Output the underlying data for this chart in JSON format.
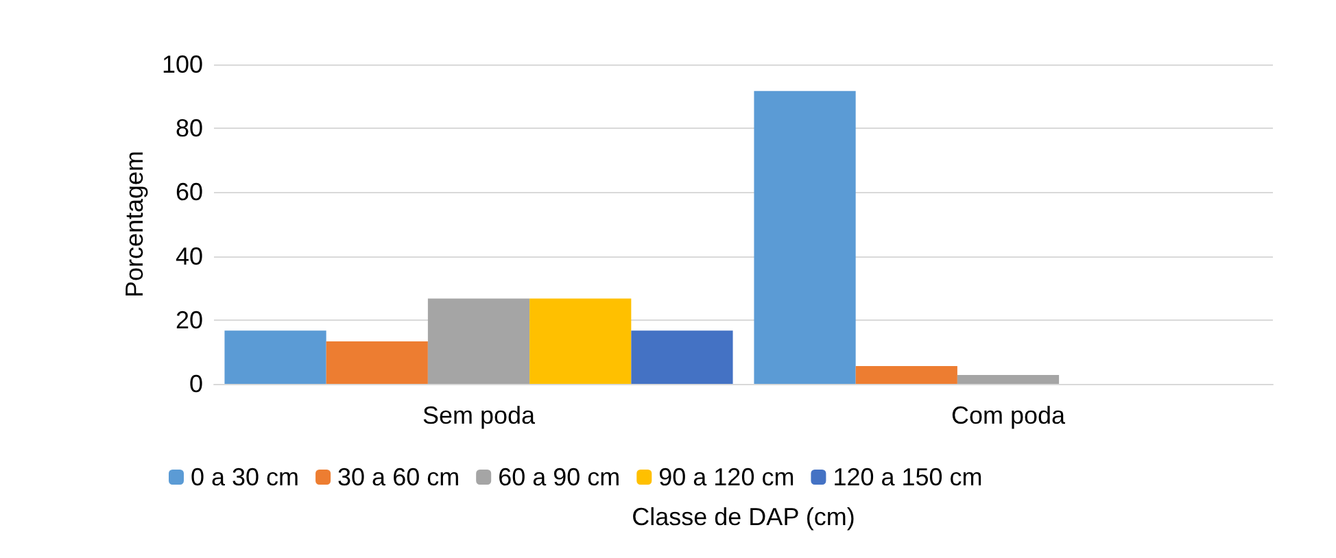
{
  "chart_data": {
    "type": "bar",
    "xlabel": "Classe de DAP (cm)",
    "ylabel": "Porcentagem",
    "categories": [
      "Sem poda",
      "Com poda"
    ],
    "series": [
      {
        "name": "0 a 30 cm",
        "color": "#5b9bd5",
        "values": [
          16.7,
          91.7
        ]
      },
      {
        "name": "30 a 60 cm",
        "color": "#ed7d31",
        "values": [
          13.3,
          5.6
        ]
      },
      {
        "name": "60 a 90 cm",
        "color": "#a5a5a5",
        "values": [
          26.7,
          2.8
        ]
      },
      {
        "name": "90 a 120 cm",
        "color": "#ffc000",
        "values": [
          26.7,
          0
        ]
      },
      {
        "name": "120 a 150 cm",
        "color": "#4472c4",
        "values": [
          16.7,
          0
        ]
      }
    ],
    "ylim": [
      0,
      100
    ],
    "yticks": [
      0,
      20,
      40,
      60,
      80,
      100
    ],
    "grid": "y",
    "legend": "bottom"
  }
}
